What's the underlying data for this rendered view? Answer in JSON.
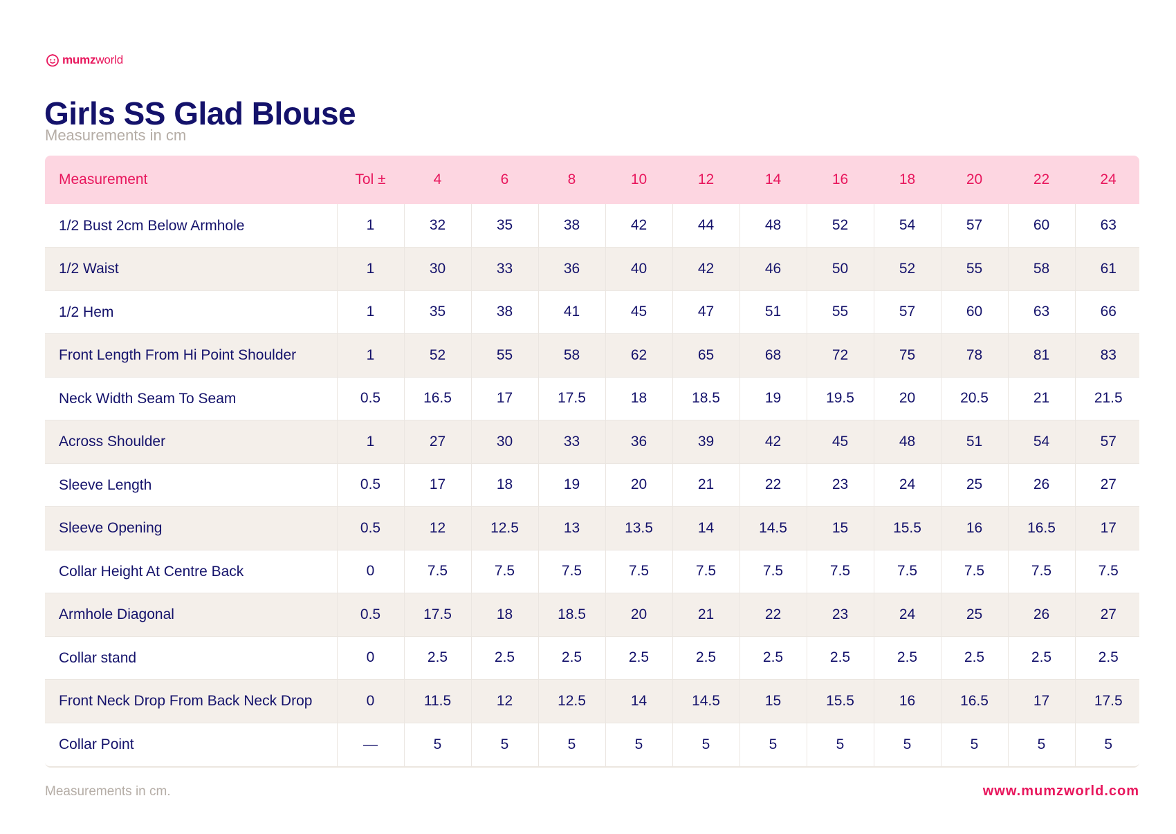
{
  "brand": {
    "logo_bold": "mumz",
    "logo_light": "world",
    "color": "#e8175d"
  },
  "header": {
    "title": "Girls SS Glad Blouse",
    "subtitle": "Measurements in cm"
  },
  "table": {
    "columns": [
      "Measurement",
      "Tol ±",
      "4",
      "6",
      "8",
      "10",
      "12",
      "14",
      "16",
      "18",
      "20",
      "22",
      "24"
    ],
    "rows": [
      [
        "1/2 Bust 2cm Below Armhole",
        "1",
        "32",
        "35",
        "38",
        "42",
        "44",
        "48",
        "52",
        "54",
        "57",
        "60",
        "63"
      ],
      [
        "1/2 Waist",
        "1",
        "30",
        "33",
        "36",
        "40",
        "42",
        "46",
        "50",
        "52",
        "55",
        "58",
        "61"
      ],
      [
        "1/2 Hem",
        "1",
        "35",
        "38",
        "41",
        "45",
        "47",
        "51",
        "55",
        "57",
        "60",
        "63",
        "66"
      ],
      [
        "Front Length From Hi Point Shoulder",
        "1",
        "52",
        "55",
        "58",
        "62",
        "65",
        "68",
        "72",
        "75",
        "78",
        "81",
        "83"
      ],
      [
        "Neck Width Seam To Seam",
        "0.5",
        "16.5",
        "17",
        "17.5",
        "18",
        "18.5",
        "19",
        "19.5",
        "20",
        "20.5",
        "21",
        "21.5"
      ],
      [
        "Across Shoulder",
        "1",
        "27",
        "30",
        "33",
        "36",
        "39",
        "42",
        "45",
        "48",
        "51",
        "54",
        "57"
      ],
      [
        "Sleeve Length",
        "0.5",
        "17",
        "18",
        "19",
        "20",
        "21",
        "22",
        "23",
        "24",
        "25",
        "26",
        "27"
      ],
      [
        "Sleeve Opening",
        "0.5",
        "12",
        "12.5",
        "13",
        "13.5",
        "14",
        "14.5",
        "15",
        "15.5",
        "16",
        "16.5",
        "17"
      ],
      [
        "Collar Height At Centre Back",
        "0",
        "7.5",
        "7.5",
        "7.5",
        "7.5",
        "7.5",
        "7.5",
        "7.5",
        "7.5",
        "7.5",
        "7.5",
        "7.5"
      ],
      [
        "Armhole Diagonal",
        "0.5",
        "17.5",
        "18",
        "18.5",
        "20",
        "21",
        "22",
        "23",
        "24",
        "25",
        "26",
        "27"
      ],
      [
        "Collar stand",
        "0",
        "2.5",
        "2.5",
        "2.5",
        "2.5",
        "2.5",
        "2.5",
        "2.5",
        "2.5",
        "2.5",
        "2.5",
        "2.5"
      ],
      [
        "Front Neck Drop From Back Neck Drop",
        "0",
        "11.5",
        "12",
        "12.5",
        "14",
        "14.5",
        "15",
        "15.5",
        "16",
        "16.5",
        "17",
        "17.5"
      ],
      [
        "Collar Point",
        "—",
        "5",
        "5",
        "5",
        "5",
        "5",
        "5",
        "5",
        "5",
        "5",
        "5",
        "5"
      ]
    ]
  },
  "footer": {
    "note": "Measurements in cm.",
    "url": "www.mumzworld.com"
  },
  "colors": {
    "primary": "#14126b",
    "accent": "#e8175d",
    "header_bg": "#fdd6e1",
    "stripe_bg": "#f4efea",
    "muted": "#b5ada6"
  }
}
